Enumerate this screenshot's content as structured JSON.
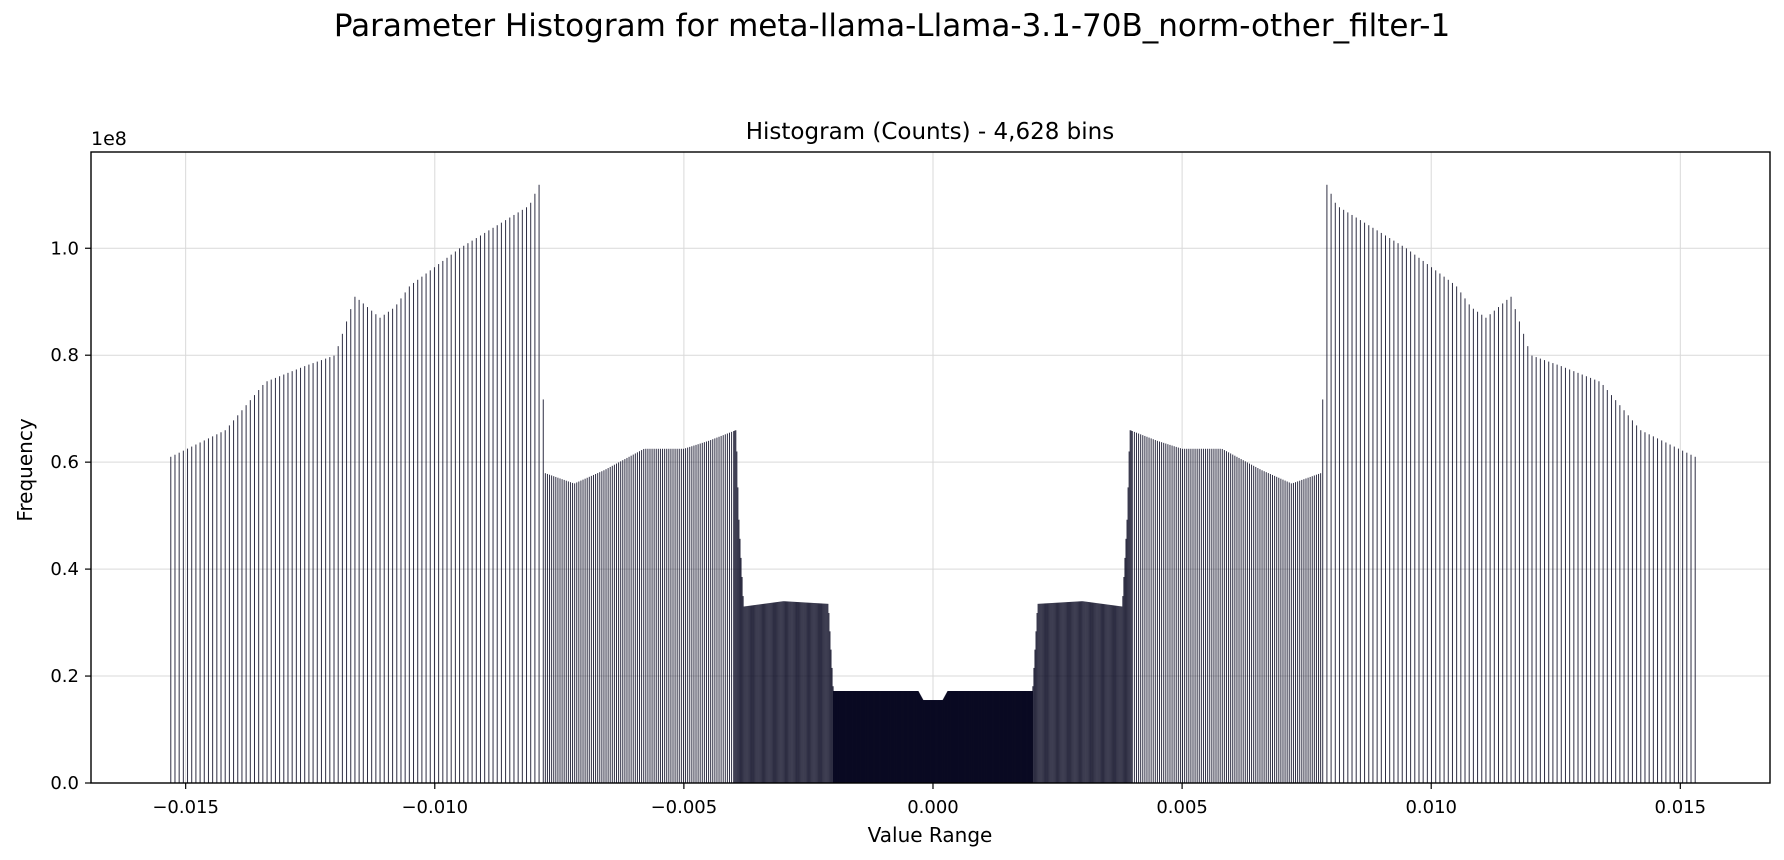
{
  "suptitle": "Parameter Histogram for meta-llama-Llama-3.1-70B_norm-other_filter-1",
  "chart_data": {
    "type": "bar",
    "title": "Histogram (Counts) - 4,628 bins",
    "xlabel": "Value Range",
    "ylabel": "Frequency",
    "y_offset_label": "1e8",
    "y_scale": 100000000,
    "xlim": [
      -0.0169,
      0.0168
    ],
    "ylim": [
      0,
      1.18
    ],
    "xticks": [
      -0.015,
      -0.01,
      -0.005,
      0.0,
      0.005,
      0.01,
      0.015
    ],
    "xtick_labels": [
      "−0.015",
      "−0.010",
      "−0.005",
      "0.000",
      "0.005",
      "0.010",
      "0.015"
    ],
    "yticks": [
      0.0,
      0.2,
      0.4,
      0.6,
      0.8,
      1.0
    ],
    "ytick_labels": [
      "0.0",
      "0.2",
      "0.4",
      "0.6",
      "0.8",
      "1.0"
    ],
    "grid": true,
    "bar_color": "#0a0a23",
    "grid_color": "#d9d9d9",
    "bins": 4628,
    "envelope_right_half": {
      "x": [
        0.0,
        0.0002,
        0.0003,
        0.002,
        0.0021,
        0.003,
        0.0038,
        0.0039,
        0.00395,
        0.0045,
        0.005,
        0.0058,
        0.0066,
        0.0072,
        0.0078,
        0.00785,
        0.0079,
        0.0081,
        0.0088,
        0.0095,
        0.0105,
        0.0108,
        0.0111,
        0.0116,
        0.012,
        0.0126,
        0.0134,
        0.0142,
        0.0153
      ],
      "y": [
        0.155,
        0.155,
        0.172,
        0.172,
        0.335,
        0.34,
        0.33,
        0.5,
        0.66,
        0.64,
        0.625,
        0.625,
        0.585,
        0.56,
        0.58,
        0.885,
        1.12,
        1.08,
        1.04,
        1.0,
        0.93,
        0.89,
        0.87,
        0.91,
        0.8,
        0.78,
        0.75,
        0.66,
        0.61
      ]
    }
  }
}
